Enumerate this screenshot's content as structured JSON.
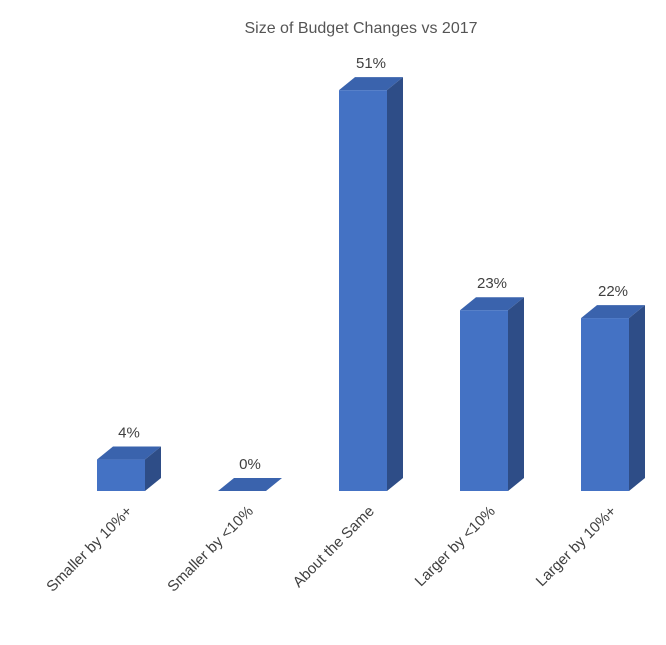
{
  "chart_data": {
    "type": "bar",
    "title": "Size of Budget Changes vs 2017",
    "categories": [
      "Smaller by 10%+",
      "Smaller by <10%",
      "About the Same",
      "Larger by <10%",
      "Larger by 10%+"
    ],
    "values": [
      4,
      0,
      51,
      23,
      22
    ],
    "data_labels": [
      "4%",
      "0%",
      "51%",
      "23%",
      "22%"
    ],
    "value_unit": "%",
    "ylim": [
      0,
      55
    ],
    "grid": false,
    "legend": "none",
    "style": "3d-column",
    "colors": {
      "front": "#4472C4",
      "side": "#2E4D87",
      "top": "#3A63AD"
    }
  }
}
